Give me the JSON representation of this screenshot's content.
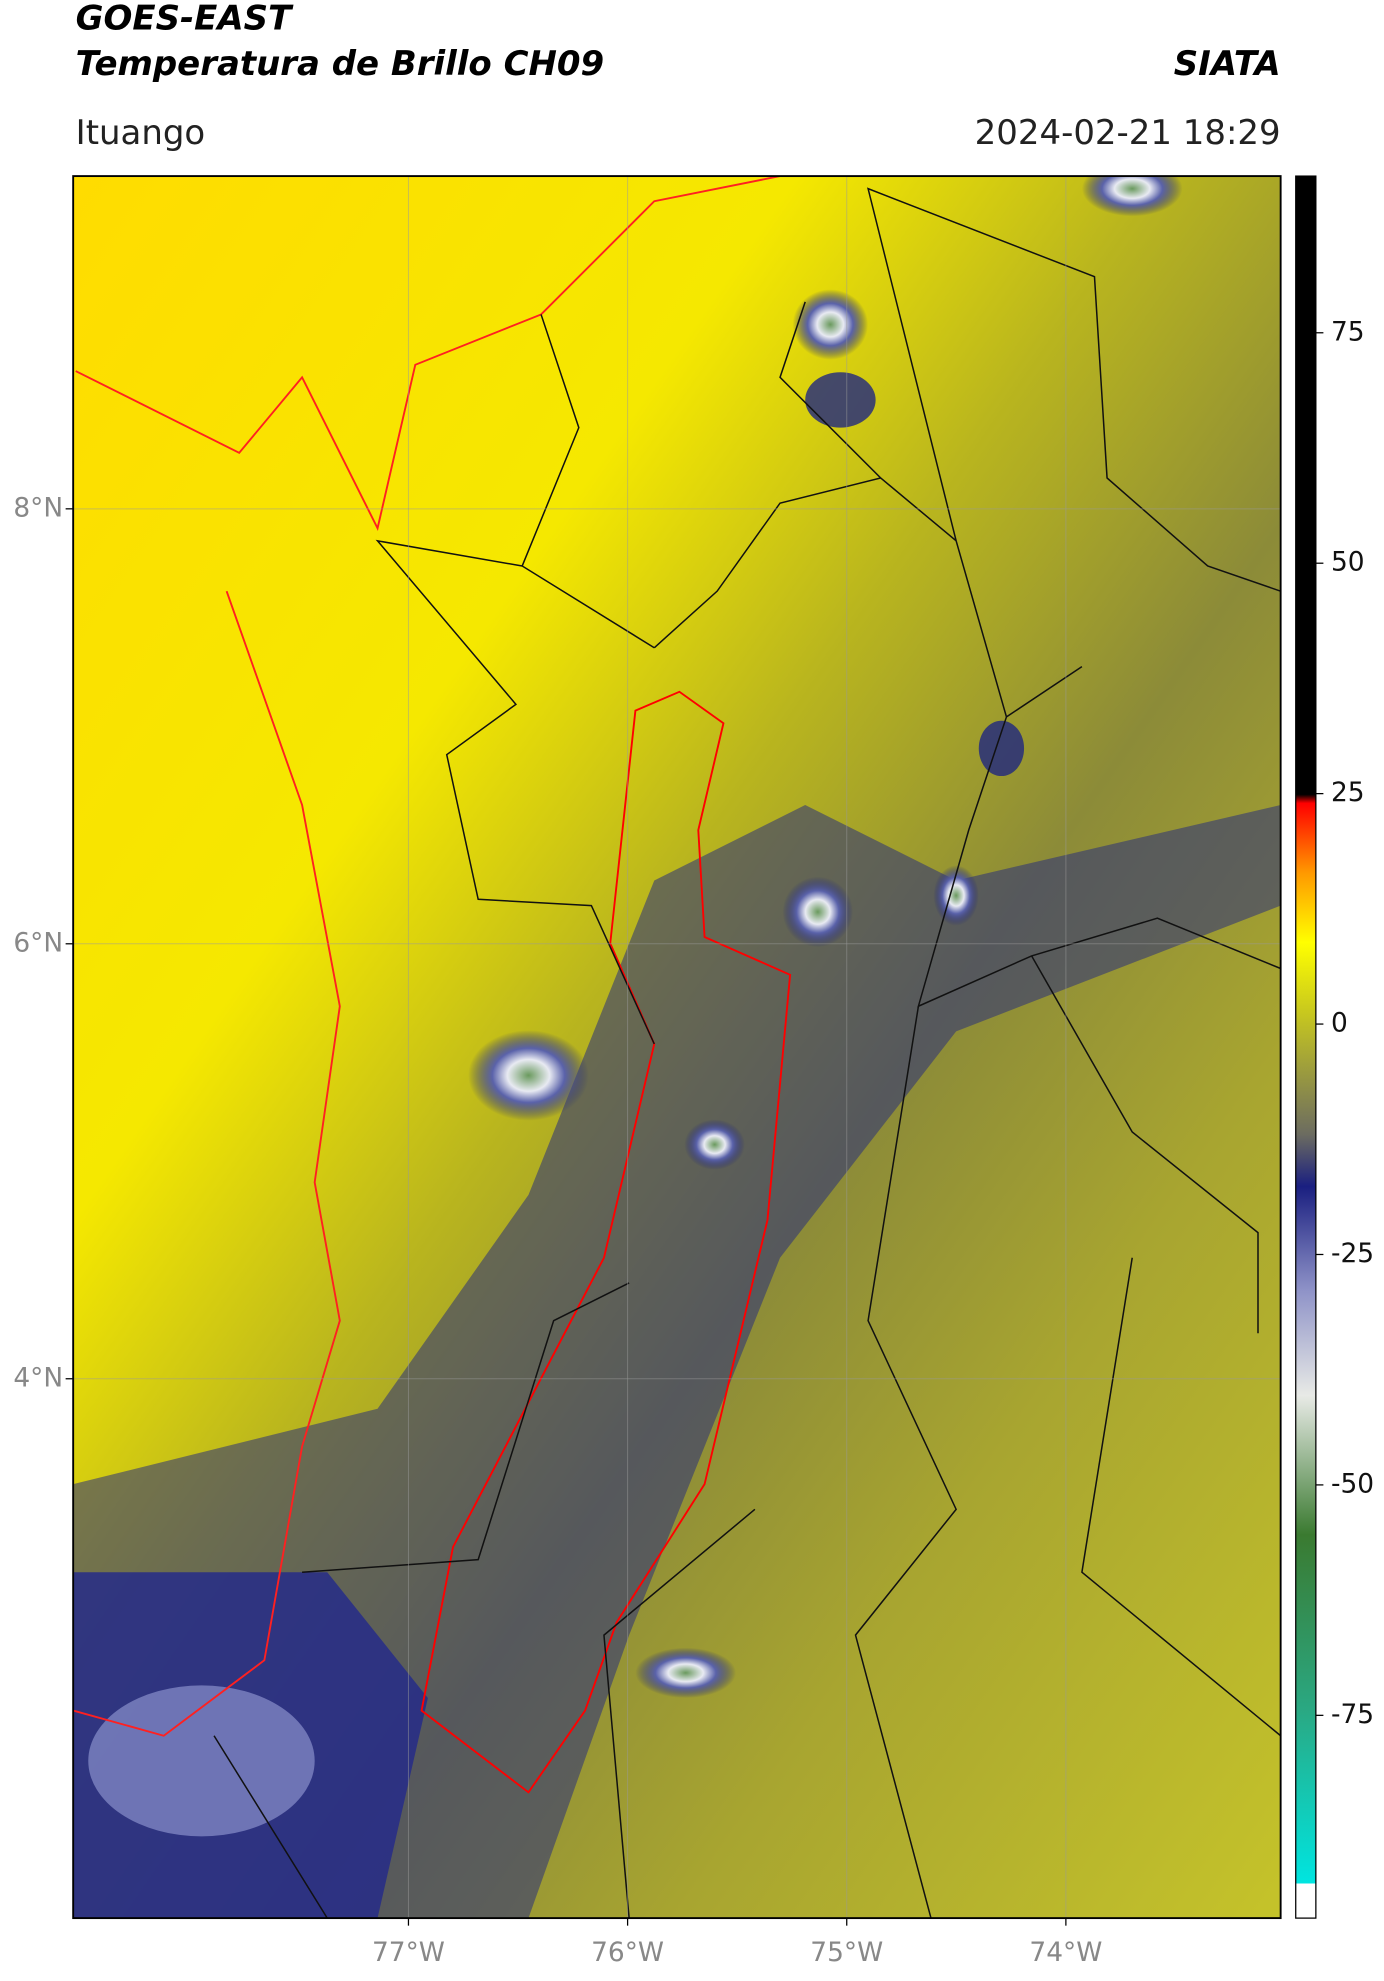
{
  "header": {
    "title": "GOES-EAST",
    "subtitle": "Temperatura de Brillo CH09",
    "source": "SIATA",
    "region": "Ituango",
    "timestamp": "2024-02-21 18:29"
  },
  "map": {
    "xlim": [
      -78.53,
      -73.02
    ],
    "ylim": [
      1.52,
      9.53
    ],
    "xticks": [
      {
        "value": -77,
        "label": "77°W"
      },
      {
        "value": -76,
        "label": "76°W"
      },
      {
        "value": -75,
        "label": "75°W"
      },
      {
        "value": -74,
        "label": "74°W"
      }
    ],
    "yticks": [
      {
        "value": 8,
        "label": "8°N"
      },
      {
        "value": 6,
        "label": "6°N"
      },
      {
        "value": 4,
        "label": "4°N"
      }
    ]
  },
  "colorbar": {
    "lim": [
      -97,
      92
    ],
    "ticks": [
      75,
      50,
      25,
      0,
      -25,
      -50,
      -75
    ]
  }
}
